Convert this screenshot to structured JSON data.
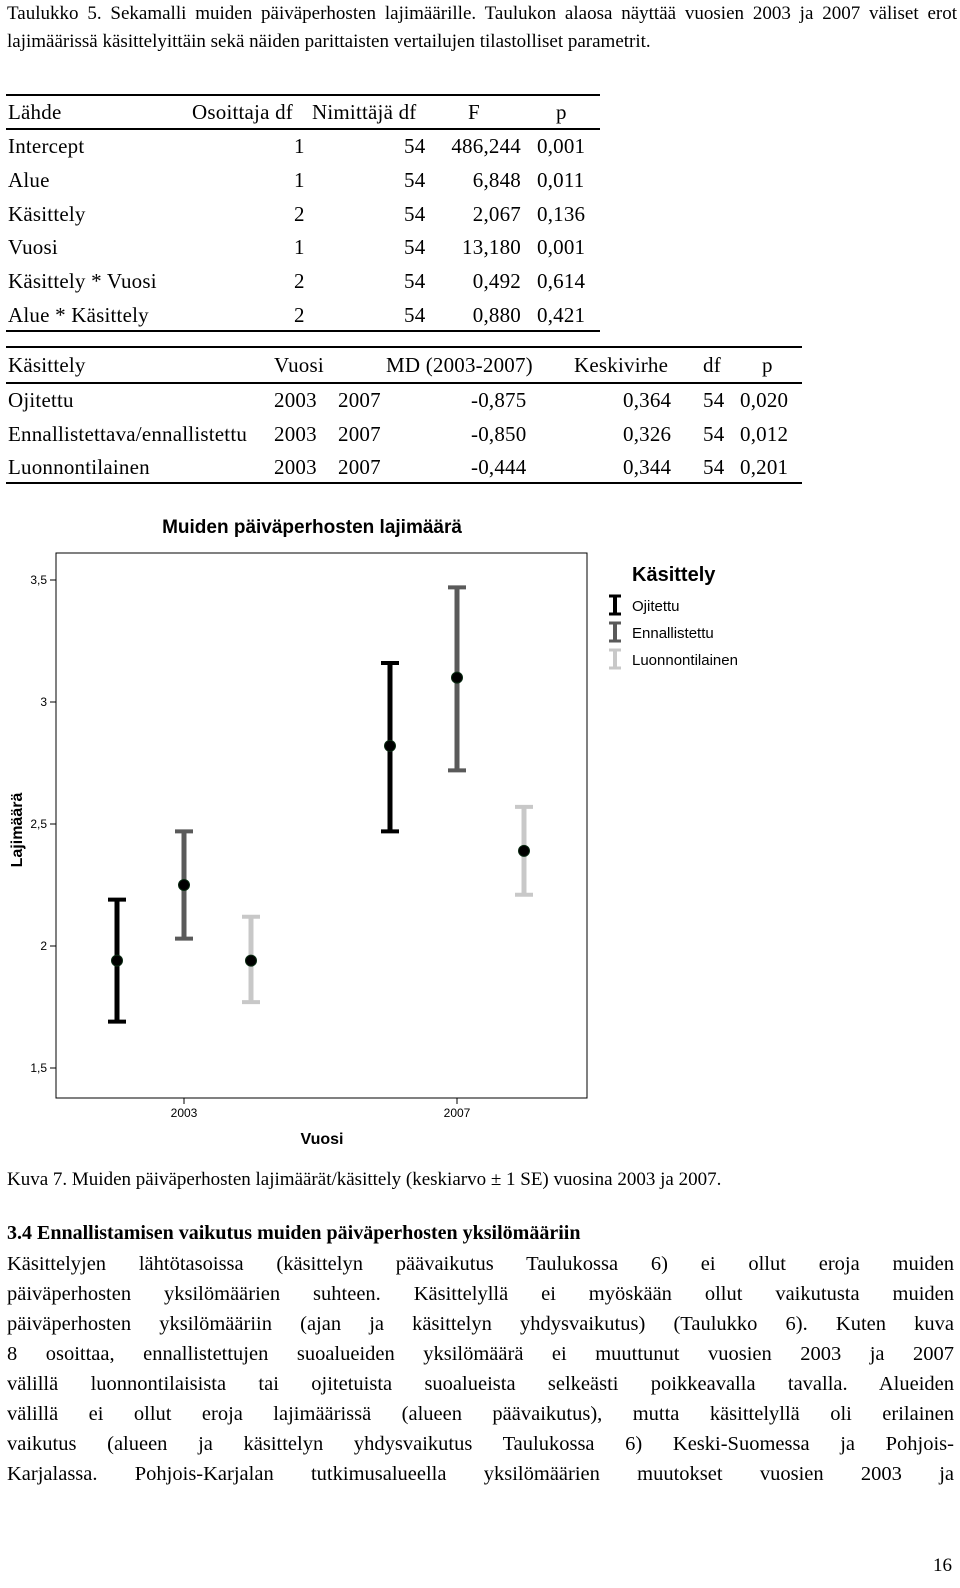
{
  "table_caption": "Taulukko 5. Sekamalli muiden päiväperhosten lajimäärille. Taulukon alaosa näyttää vuosien 2003 ja 2007 väliset erot lajimäärissä käsittelyittäin sekä näiden parittaisten vertailujen tilastolliset parametrit.",
  "anova": {
    "headers": [
      "Lähde",
      "Osoittaja df",
      "Nimittäjä df",
      "F",
      "p"
    ],
    "rows": [
      [
        "Intercept",
        "1",
        "54",
        "486,244",
        "0,001"
      ],
      [
        "Alue",
        "1",
        "54",
        "6,848",
        "0,011"
      ],
      [
        "Käsittely",
        "2",
        "54",
        "2,067",
        "0,136"
      ],
      [
        "Vuosi",
        "1",
        "54",
        "13,180",
        "0,001"
      ],
      [
        "Käsittely * Vuosi",
        "2",
        "54",
        "0,492",
        "0,614"
      ],
      [
        "Alue * Käsittely",
        "2",
        "54",
        "0,880",
        "0,421"
      ]
    ]
  },
  "comparisons": {
    "headers": [
      "Käsittely",
      "Vuosi",
      "MD (2003-2007)",
      "Keskivirhe",
      "df",
      "p"
    ],
    "rows": [
      [
        "Ojitettu",
        "2003",
        "2007",
        "-0,875",
        "0,364",
        "54",
        "0,020"
      ],
      [
        "Ennallistettava/ennallistettu",
        "2003",
        "2007",
        "-0,850",
        "0,326",
        "54",
        "0,012"
      ],
      [
        "Luonnontilainen",
        "2003",
        "2007",
        "-0,444",
        "0,344",
        "54",
        "0,201"
      ]
    ]
  },
  "chart_data": {
    "type": "scatter",
    "title": "Muiden päiväperhosten lajimäärä",
    "xlabel": "Vuosi",
    "ylabel": "Lajimäärä",
    "categories": [
      "2003",
      "2007"
    ],
    "ylim": [
      1.5,
      3.5
    ],
    "yticks": [
      "1,5",
      "2",
      "2,5",
      "3",
      "3,5"
    ],
    "legend_title": "Käsittely",
    "legend_position": "right",
    "error_bars": "± 1 SE",
    "series": [
      {
        "name": "Ojitettu",
        "color": "#000000",
        "mean": [
          1.94,
          2.82
        ],
        "low": [
          1.69,
          2.47
        ],
        "high": [
          2.19,
          3.16
        ]
      },
      {
        "name": "Ennallistettu",
        "color": "#5a5a5a",
        "mean": [
          2.25,
          3.1
        ],
        "low": [
          2.03,
          2.72
        ],
        "high": [
          2.47,
          3.47
        ]
      },
      {
        "name": "Luonnontilainen",
        "color": "#c8c8c8",
        "mean": [
          1.94,
          2.39
        ],
        "low": [
          1.77,
          2.21
        ],
        "high": [
          2.12,
          2.57
        ]
      }
    ]
  },
  "figure_caption": "Kuva 7. Muiden päiväperhosten lajimäärät/käsittely (keskiarvo ± 1 SE) vuosina 2003 ja 2007.",
  "section_heading": "3.4 Ennallistamisen vaikutus muiden päiväperhosten yksilömääriin",
  "body_lines": [
    "Käsittelyjen lähtötasoissa (käsittelyn päävaikutus Taulukossa 6) ei ollut eroja muiden",
    "päiväperhosten yksilömäärien suhteen. Käsittelyllä ei myöskään ollut vaikutusta muiden",
    "päiväperhosten yksilömääriin (ajan ja käsittelyn yhdysvaikutus) (Taulukko 6). Kuten kuva",
    "8 osoittaa, ennallistettujen suoalueiden yksilömäärä ei muuttunut vuosien 2003 ja 2007",
    "välillä luonnontilaisista tai ojitetuista suoalueista selkeästi poikkeavalla tavalla. Alueiden",
    "välillä ei ollut eroja lajimäärissä (alueen päävaikutus), mutta käsittelyllä oli erilainen",
    "vaikutus (alueen ja käsittelyn yhdysvaikutus Taulukossa 6) Keski-Suomessa ja Pohjois-",
    "Karjalassa. Pohjois-Karjalan tutkimusalueella yksilömäärien muutokset vuosien 2003 ja"
  ],
  "page_number": "16"
}
